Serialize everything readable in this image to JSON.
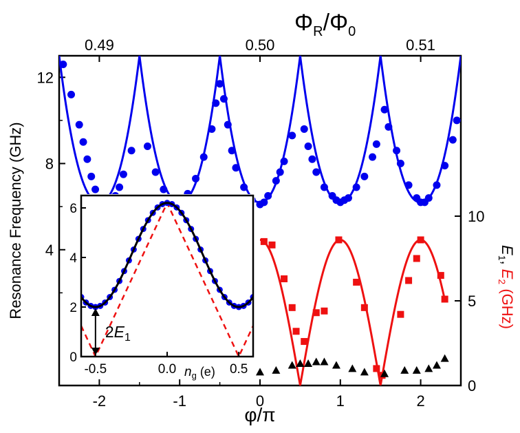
{
  "chart_data": [
    {
      "type": "scatter",
      "role": "main",
      "xlabel": "φ/π",
      "ylabel": "Resonance Frequency (GHz)",
      "toplabel": "ΦR/Φ0",
      "toplabel_base": "Φ",
      "toplabel_sub1": "R",
      "toplabel_mid": "/Φ",
      "toplabel_sub2": "0",
      "right_label_parts": [
        "E",
        "1",
        ", ",
        "E",
        "2",
        " (GHz)"
      ],
      "xlim": [
        -2.5,
        2.5
      ],
      "ylim": [
        -2.3,
        13
      ],
      "x_ticks": [
        -2,
        -1,
        0,
        1,
        2
      ],
      "x_tick_labels": [
        "-2",
        "-1",
        "0",
        "1",
        "2"
      ],
      "y_ticks": [
        4,
        8,
        12
      ],
      "y_tick_labels": [
        "4",
        "8",
        "12"
      ],
      "top_ticks": [
        0.49,
        0.5,
        0.51
      ],
      "top_tick_labels": [
        "0.49",
        "0.50",
        "0.51"
      ],
      "top_tick_phi": [
        -2,
        0,
        2
      ],
      "right_ticks": [
        0,
        5,
        10
      ],
      "right_tick_labels": [
        "0",
        "5",
        "10"
      ],
      "right_ylim": [
        0,
        10
      ],
      "series": [
        {
          "kind": "line",
          "color": "#0000ee",
          "model": "blue_resonance",
          "params": {
            "base": 6.2,
            "amp": 6.8,
            "peaks_at": [
              -1.5,
              -0.5,
              0.5,
              1.5
            ]
          }
        },
        {
          "kind": "points",
          "color": "#0000ee",
          "marker": "circle",
          "points": [
            [
              -2.45,
              12.6
            ],
            [
              -2.35,
              11.2
            ],
            [
              -2.25,
              9.8
            ],
            [
              -2.2,
              9.0
            ],
            [
              -2.15,
              8.2
            ],
            [
              -2.1,
              7.4
            ],
            [
              -2.05,
              6.8
            ],
            [
              -2.0,
              6.4
            ],
            [
              -1.95,
              6.2
            ],
            [
              -1.9,
              6.1
            ],
            [
              -1.85,
              6.2
            ],
            [
              -1.8,
              6.5
            ],
            [
              -1.75,
              6.9
            ],
            [
              -1.7,
              7.5
            ],
            [
              -1.6,
              8.6
            ],
            [
              -1.4,
              8.8
            ],
            [
              -1.3,
              7.6
            ],
            [
              -1.2,
              6.8
            ],
            [
              -1.15,
              6.4
            ],
            [
              -1.1,
              6.2
            ],
            [
              -1.05,
              6.2
            ],
            [
              -1.0,
              6.3
            ],
            [
              -0.95,
              6.4
            ],
            [
              -0.9,
              6.6
            ],
            [
              -0.8,
              7.3
            ],
            [
              -0.7,
              8.3
            ],
            [
              -0.6,
              9.6
            ],
            [
              -0.55,
              10.8
            ],
            [
              -0.5,
              11.7
            ],
            [
              -0.45,
              11.0
            ],
            [
              -0.4,
              9.8
            ],
            [
              -0.35,
              8.6
            ],
            [
              -0.3,
              7.8
            ],
            [
              -0.2,
              6.9
            ],
            [
              -0.1,
              6.3
            ],
            [
              0.0,
              6.1
            ],
            [
              0.05,
              6.2
            ],
            [
              0.1,
              6.5
            ],
            [
              0.2,
              7.2
            ],
            [
              0.25,
              7.6
            ],
            [
              0.3,
              8.1
            ],
            [
              0.4,
              9.3
            ],
            [
              0.55,
              9.6
            ],
            [
              0.6,
              8.8
            ],
            [
              0.65,
              8.2
            ],
            [
              0.7,
              7.6
            ],
            [
              0.8,
              6.9
            ],
            [
              0.9,
              6.5
            ],
            [
              0.95,
              6.3
            ],
            [
              1.0,
              6.2
            ],
            [
              1.05,
              6.3
            ],
            [
              1.1,
              6.4
            ],
            [
              1.2,
              6.9
            ],
            [
              1.3,
              7.4
            ],
            [
              1.4,
              8.3
            ],
            [
              1.45,
              8.9
            ],
            [
              1.55,
              10.5
            ],
            [
              1.6,
              9.7
            ],
            [
              1.7,
              8.6
            ],
            [
              1.75,
              8.0
            ],
            [
              1.85,
              7.0
            ],
            [
              1.95,
              6.4
            ],
            [
              2.0,
              6.2
            ],
            [
              2.05,
              6.2
            ],
            [
              2.1,
              6.4
            ],
            [
              2.2,
              7.0
            ],
            [
              2.3,
              7.9
            ],
            [
              2.4,
              9.1
            ],
            [
              2.45,
              10.0
            ]
          ]
        },
        {
          "kind": "line",
          "color": "#ee1111",
          "axis": "right",
          "model": "red_e2",
          "params": {
            "amp": 8.6,
            "start": 0.0,
            "end": 2.3
          }
        },
        {
          "kind": "points",
          "color": "#ee1111",
          "marker": "square",
          "axis": "right",
          "points": [
            [
              0.05,
              8.5
            ],
            [
              0.15,
              8.3
            ],
            [
              0.3,
              6.3
            ],
            [
              0.4,
              4.6
            ],
            [
              0.45,
              3.2
            ],
            [
              0.55,
              2.6
            ],
            [
              0.7,
              4.3
            ],
            [
              0.8,
              4.4
            ],
            [
              0.98,
              8.6
            ],
            [
              1.2,
              6.1
            ],
            [
              1.3,
              4.6
            ],
            [
              1.45,
              1.0
            ],
            [
              1.52,
              0.6
            ],
            [
              1.75,
              4.2
            ],
            [
              1.85,
              6.2
            ],
            [
              1.95,
              7.5
            ],
            [
              2.0,
              8.6
            ],
            [
              2.25,
              6.5
            ],
            [
              2.3,
              5.1
            ]
          ]
        },
        {
          "kind": "points",
          "color": "#000000",
          "marker": "triangle",
          "axis": "right",
          "points": [
            [
              0.0,
              0.8
            ],
            [
              0.2,
              0.9
            ],
            [
              0.4,
              1.2
            ],
            [
              0.5,
              1.3
            ],
            [
              0.6,
              1.3
            ],
            [
              0.7,
              1.4
            ],
            [
              0.8,
              1.4
            ],
            [
              0.95,
              1.2
            ],
            [
              1.15,
              1.0
            ],
            [
              1.3,
              0.8
            ],
            [
              1.55,
              0.7
            ],
            [
              1.8,
              0.9
            ],
            [
              1.95,
              0.9
            ],
            [
              2.1,
              1.0
            ],
            [
              2.2,
              1.2
            ],
            [
              2.3,
              1.6
            ]
          ]
        }
      ]
    },
    {
      "type": "line",
      "role": "inset",
      "xlabel_base": "n",
      "xlabel_sub": "g",
      "xlabel_unit": "(e)",
      "xlim": [
        -0.6,
        0.6
      ],
      "ylim": [
        0,
        6.5
      ],
      "x_ticks": [
        -0.5,
        0.0,
        0.5
      ],
      "x_tick_labels": [
        "-0.5",
        "0.0",
        "0.5"
      ],
      "y_ticks": [
        0,
        2,
        4,
        6
      ],
      "y_tick_labels": [
        "0",
        "2",
        "4",
        "6"
      ],
      "annotation_prefix": "2",
      "annotation_var": "E",
      "annotation_sub": "1",
      "series": [
        {
          "kind": "line",
          "color": "#000000",
          "model": "inset_cos",
          "params": {
            "mid": 4.1,
            "amp": 2.1
          }
        },
        {
          "kind": "line",
          "color": "#ee1111",
          "dashed": true,
          "model": "inset_abs",
          "params": {
            "peak": 6.2,
            "zero_at": 0.5
          }
        },
        {
          "kind": "points",
          "color": "#0000ee",
          "marker": "circle",
          "model_points": "inset_cos_samples",
          "params": {
            "mid": 4.1,
            "amp": 2.1,
            "count": 37
          }
        }
      ],
      "arrow_y": [
        0,
        2.0
      ]
    }
  ]
}
